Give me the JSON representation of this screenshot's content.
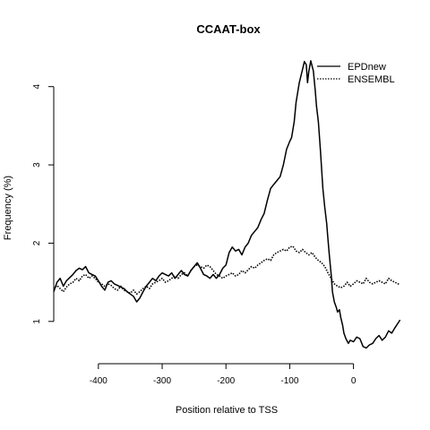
{
  "chart_data": {
    "type": "line",
    "title": "CCAAT-box",
    "xlabel": "Position relative to TSS",
    "ylabel": "Frequency (%)",
    "xlim": [
      -470,
      75
    ],
    "ylim": [
      0.62,
      4.42
    ],
    "x_ticks": [
      -400,
      -300,
      -200,
      -100,
      0
    ],
    "y_ticks": [
      1,
      2,
      3,
      4
    ],
    "x_tick_labels": [
      "-400",
      "-300",
      "-200",
      "-100",
      "0"
    ],
    "y_tick_labels": [
      "1",
      "2",
      "3",
      "4"
    ],
    "grid": false,
    "legend_position": "top-right",
    "series": [
      {
        "name": "EPDnew",
        "style": "solid",
        "color": "#000000",
        "points": [
          [
            -470,
            1.38
          ],
          [
            -465,
            1.5
          ],
          [
            -460,
            1.55
          ],
          [
            -455,
            1.45
          ],
          [
            -450,
            1.52
          ],
          [
            -445,
            1.56
          ],
          [
            -440,
            1.6
          ],
          [
            -435,
            1.65
          ],
          [
            -430,
            1.68
          ],
          [
            -425,
            1.66
          ],
          [
            -420,
            1.7
          ],
          [
            -415,
            1.62
          ],
          [
            -410,
            1.6
          ],
          [
            -405,
            1.58
          ],
          [
            -400,
            1.52
          ],
          [
            -395,
            1.45
          ],
          [
            -390,
            1.4
          ],
          [
            -385,
            1.5
          ],
          [
            -380,
            1.52
          ],
          [
            -375,
            1.48
          ],
          [
            -370,
            1.46
          ],
          [
            -365,
            1.44
          ],
          [
            -360,
            1.42
          ],
          [
            -355,
            1.38
          ],
          [
            -350,
            1.35
          ],
          [
            -345,
            1.32
          ],
          [
            -340,
            1.25
          ],
          [
            -335,
            1.3
          ],
          [
            -330,
            1.38
          ],
          [
            -325,
            1.45
          ],
          [
            -320,
            1.5
          ],
          [
            -315,
            1.55
          ],
          [
            -310,
            1.52
          ],
          [
            -305,
            1.58
          ],
          [
            -300,
            1.62
          ],
          [
            -295,
            1.6
          ],
          [
            -290,
            1.58
          ],
          [
            -285,
            1.62
          ],
          [
            -280,
            1.55
          ],
          [
            -275,
            1.6
          ],
          [
            -270,
            1.65
          ],
          [
            -265,
            1.6
          ],
          [
            -260,
            1.58
          ],
          [
            -255,
            1.65
          ],
          [
            -250,
            1.7
          ],
          [
            -245,
            1.75
          ],
          [
            -240,
            1.68
          ],
          [
            -235,
            1.6
          ],
          [
            -230,
            1.58
          ],
          [
            -225,
            1.55
          ],
          [
            -220,
            1.6
          ],
          [
            -215,
            1.55
          ],
          [
            -210,
            1.6
          ],
          [
            -205,
            1.68
          ],
          [
            -200,
            1.72
          ],
          [
            -195,
            1.88
          ],
          [
            -190,
            1.95
          ],
          [
            -185,
            1.9
          ],
          [
            -180,
            1.92
          ],
          [
            -175,
            1.85
          ],
          [
            -170,
            1.95
          ],
          [
            -165,
            2.0
          ],
          [
            -160,
            2.1
          ],
          [
            -155,
            2.15
          ],
          [
            -150,
            2.2
          ],
          [
            -145,
            2.3
          ],
          [
            -140,
            2.38
          ],
          [
            -135,
            2.55
          ],
          [
            -130,
            2.7
          ],
          [
            -125,
            2.75
          ],
          [
            -120,
            2.8
          ],
          [
            -115,
            2.85
          ],
          [
            -110,
            3.0
          ],
          [
            -105,
            3.2
          ],
          [
            -100,
            3.3
          ],
          [
            -97,
            3.35
          ],
          [
            -93,
            3.55
          ],
          [
            -90,
            3.8
          ],
          [
            -85,
            4.05
          ],
          [
            -80,
            4.22
          ],
          [
            -77,
            4.32
          ],
          [
            -74,
            4.28
          ],
          [
            -72,
            4.05
          ],
          [
            -70,
            4.2
          ],
          [
            -67,
            4.33
          ],
          [
            -63,
            4.2
          ],
          [
            -60,
            3.95
          ],
          [
            -58,
            3.75
          ],
          [
            -55,
            3.55
          ],
          [
            -52,
            3.2
          ],
          [
            -50,
            2.95
          ],
          [
            -48,
            2.7
          ],
          [
            -45,
            2.45
          ],
          [
            -42,
            2.25
          ],
          [
            -40,
            2.05
          ],
          [
            -38,
            1.85
          ],
          [
            -35,
            1.6
          ],
          [
            -33,
            1.38
          ],
          [
            -30,
            1.25
          ],
          [
            -27,
            1.18
          ],
          [
            -25,
            1.12
          ],
          [
            -22,
            1.15
          ],
          [
            -20,
            1.05
          ],
          [
            -17,
            0.95
          ],
          [
            -15,
            0.85
          ],
          [
            -12,
            0.78
          ],
          [
            -8,
            0.72
          ],
          [
            -5,
            0.76
          ],
          [
            0,
            0.74
          ],
          [
            5,
            0.8
          ],
          [
            10,
            0.78
          ],
          [
            15,
            0.68
          ],
          [
            20,
            0.66
          ],
          [
            25,
            0.7
          ],
          [
            30,
            0.72
          ],
          [
            35,
            0.78
          ],
          [
            40,
            0.82
          ],
          [
            45,
            0.76
          ],
          [
            50,
            0.8
          ],
          [
            55,
            0.88
          ],
          [
            60,
            0.85
          ],
          [
            65,
            0.92
          ],
          [
            70,
            0.98
          ],
          [
            73,
            1.02
          ]
        ]
      },
      {
        "name": "ENSEMBL",
        "style": "dotted",
        "color": "#000000",
        "points": [
          [
            -470,
            1.42
          ],
          [
            -465,
            1.46
          ],
          [
            -460,
            1.42
          ],
          [
            -455,
            1.38
          ],
          [
            -450,
            1.44
          ],
          [
            -445,
            1.48
          ],
          [
            -440,
            1.5
          ],
          [
            -435,
            1.55
          ],
          [
            -430,
            1.52
          ],
          [
            -425,
            1.58
          ],
          [
            -420,
            1.6
          ],
          [
            -415,
            1.55
          ],
          [
            -410,
            1.58
          ],
          [
            -405,
            1.55
          ],
          [
            -400,
            1.5
          ],
          [
            -395,
            1.48
          ],
          [
            -390,
            1.45
          ],
          [
            -385,
            1.48
          ],
          [
            -380,
            1.46
          ],
          [
            -375,
            1.42
          ],
          [
            -370,
            1.4
          ],
          [
            -365,
            1.45
          ],
          [
            -360,
            1.4
          ],
          [
            -355,
            1.38
          ],
          [
            -350,
            1.36
          ],
          [
            -345,
            1.4
          ],
          [
            -340,
            1.35
          ],
          [
            -335,
            1.38
          ],
          [
            -330,
            1.42
          ],
          [
            -325,
            1.45
          ],
          [
            -320,
            1.42
          ],
          [
            -315,
            1.48
          ],
          [
            -310,
            1.5
          ],
          [
            -305,
            1.52
          ],
          [
            -300,
            1.55
          ],
          [
            -295,
            1.5
          ],
          [
            -290,
            1.52
          ],
          [
            -285,
            1.55
          ],
          [
            -280,
            1.58
          ],
          [
            -275,
            1.55
          ],
          [
            -270,
            1.6
          ],
          [
            -265,
            1.62
          ],
          [
            -260,
            1.58
          ],
          [
            -255,
            1.65
          ],
          [
            -250,
            1.7
          ],
          [
            -245,
            1.72
          ],
          [
            -240,
            1.7
          ],
          [
            -235,
            1.68
          ],
          [
            -230,
            1.72
          ],
          [
            -225,
            1.7
          ],
          [
            -220,
            1.65
          ],
          [
            -215,
            1.6
          ],
          [
            -210,
            1.58
          ],
          [
            -205,
            1.55
          ],
          [
            -200,
            1.58
          ],
          [
            -195,
            1.6
          ],
          [
            -190,
            1.62
          ],
          [
            -185,
            1.58
          ],
          [
            -180,
            1.6
          ],
          [
            -175,
            1.65
          ],
          [
            -170,
            1.62
          ],
          [
            -165,
            1.66
          ],
          [
            -160,
            1.7
          ],
          [
            -155,
            1.68
          ],
          [
            -150,
            1.72
          ],
          [
            -145,
            1.75
          ],
          [
            -140,
            1.78
          ],
          [
            -135,
            1.8
          ],
          [
            -130,
            1.78
          ],
          [
            -125,
            1.85
          ],
          [
            -120,
            1.88
          ],
          [
            -115,
            1.9
          ],
          [
            -110,
            1.92
          ],
          [
            -105,
            1.9
          ],
          [
            -100,
            1.95
          ],
          [
            -95,
            1.96
          ],
          [
            -90,
            1.9
          ],
          [
            -85,
            1.88
          ],
          [
            -80,
            1.92
          ],
          [
            -75,
            1.88
          ],
          [
            -70,
            1.85
          ],
          [
            -65,
            1.88
          ],
          [
            -60,
            1.82
          ],
          [
            -55,
            1.78
          ],
          [
            -50,
            1.75
          ],
          [
            -45,
            1.7
          ],
          [
            -40,
            1.62
          ],
          [
            -35,
            1.55
          ],
          [
            -30,
            1.48
          ],
          [
            -25,
            1.45
          ],
          [
            -20,
            1.43
          ],
          [
            -15,
            1.45
          ],
          [
            -10,
            1.5
          ],
          [
            -5,
            1.45
          ],
          [
            0,
            1.48
          ],
          [
            5,
            1.52
          ],
          [
            10,
            1.5
          ],
          [
            15,
            1.48
          ],
          [
            20,
            1.55
          ],
          [
            25,
            1.5
          ],
          [
            30,
            1.48
          ],
          [
            35,
            1.5
          ],
          [
            40,
            1.52
          ],
          [
            45,
            1.5
          ],
          [
            50,
            1.48
          ],
          [
            55,
            1.55
          ],
          [
            60,
            1.52
          ],
          [
            65,
            1.5
          ],
          [
            70,
            1.48
          ],
          [
            73,
            1.47
          ]
        ]
      }
    ]
  }
}
